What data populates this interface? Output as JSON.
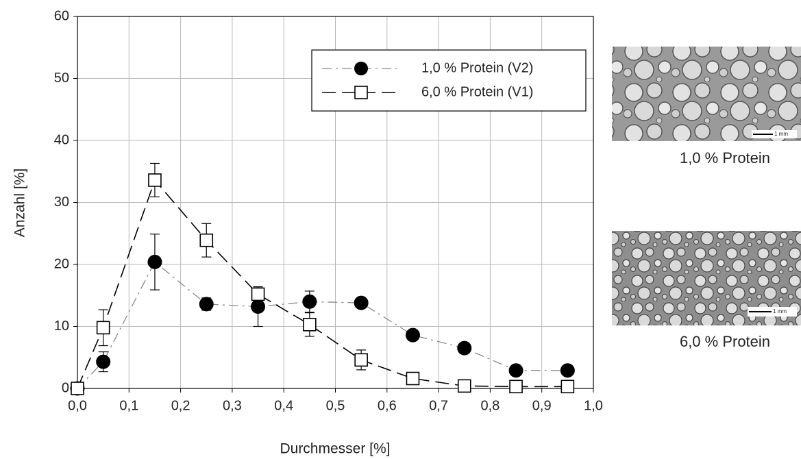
{
  "chart_data": {
    "type": "line",
    "x_label": "Durchmesser [%]",
    "y_label": "Anzahl [%]",
    "x": [
      0,
      0.05,
      0.15,
      0.25,
      0.35,
      0.45,
      0.55,
      0.65,
      0.75,
      0.85,
      0.95
    ],
    "series": [
      {
        "name": "1,0 % Protein (V2)",
        "color": "#888888",
        "marker": "circle",
        "values": [
          0,
          4.3,
          20.4,
          13.6,
          13.2,
          14.0,
          13.8,
          8.6,
          6.5,
          2.9,
          2.9
        ],
        "errors": [
          0,
          1.6,
          4.5,
          1.0,
          3.2,
          1.7,
          0.5,
          0.5,
          0.8,
          0.3,
          0.3
        ]
      },
      {
        "name": "6,0 % Protein (V1)",
        "color": "#000000",
        "marker": "square",
        "values": [
          0,
          9.8,
          33.6,
          23.9,
          15.2,
          10.3,
          4.6,
          1.6,
          0.4,
          0.3,
          0.3
        ],
        "errors": [
          0,
          2.9,
          2.7,
          2.7,
          1.2,
          1.9,
          1.6,
          0.2,
          0.1,
          0.1,
          0.1
        ]
      }
    ],
    "xlim": [
      0,
      1
    ],
    "xticks": [
      {
        "value": 0,
        "label": "0,0"
      },
      {
        "value": 0.1,
        "label": "0,1"
      },
      {
        "value": 0.2,
        "label": "0,2"
      },
      {
        "value": 0.3,
        "label": "0,3"
      },
      {
        "value": 0.4,
        "label": "0,4"
      },
      {
        "value": 0.5,
        "label": "0,5"
      },
      {
        "value": 0.6,
        "label": "0,6"
      },
      {
        "value": 0.7,
        "label": "0,7"
      },
      {
        "value": 0.8,
        "label": "0,8"
      },
      {
        "value": 0.9,
        "label": "0,9"
      },
      {
        "value": 1,
        "label": "1,0"
      }
    ],
    "ylim": [
      0,
      60
    ],
    "yticks": [
      0,
      10,
      20,
      30,
      40,
      50,
      60
    ],
    "grid": true,
    "legend": "upper right",
    "image_captions": [
      "1,0 % Protein",
      "6,0 % Protein"
    ],
    "scale_bar_label": "1 mm"
  }
}
